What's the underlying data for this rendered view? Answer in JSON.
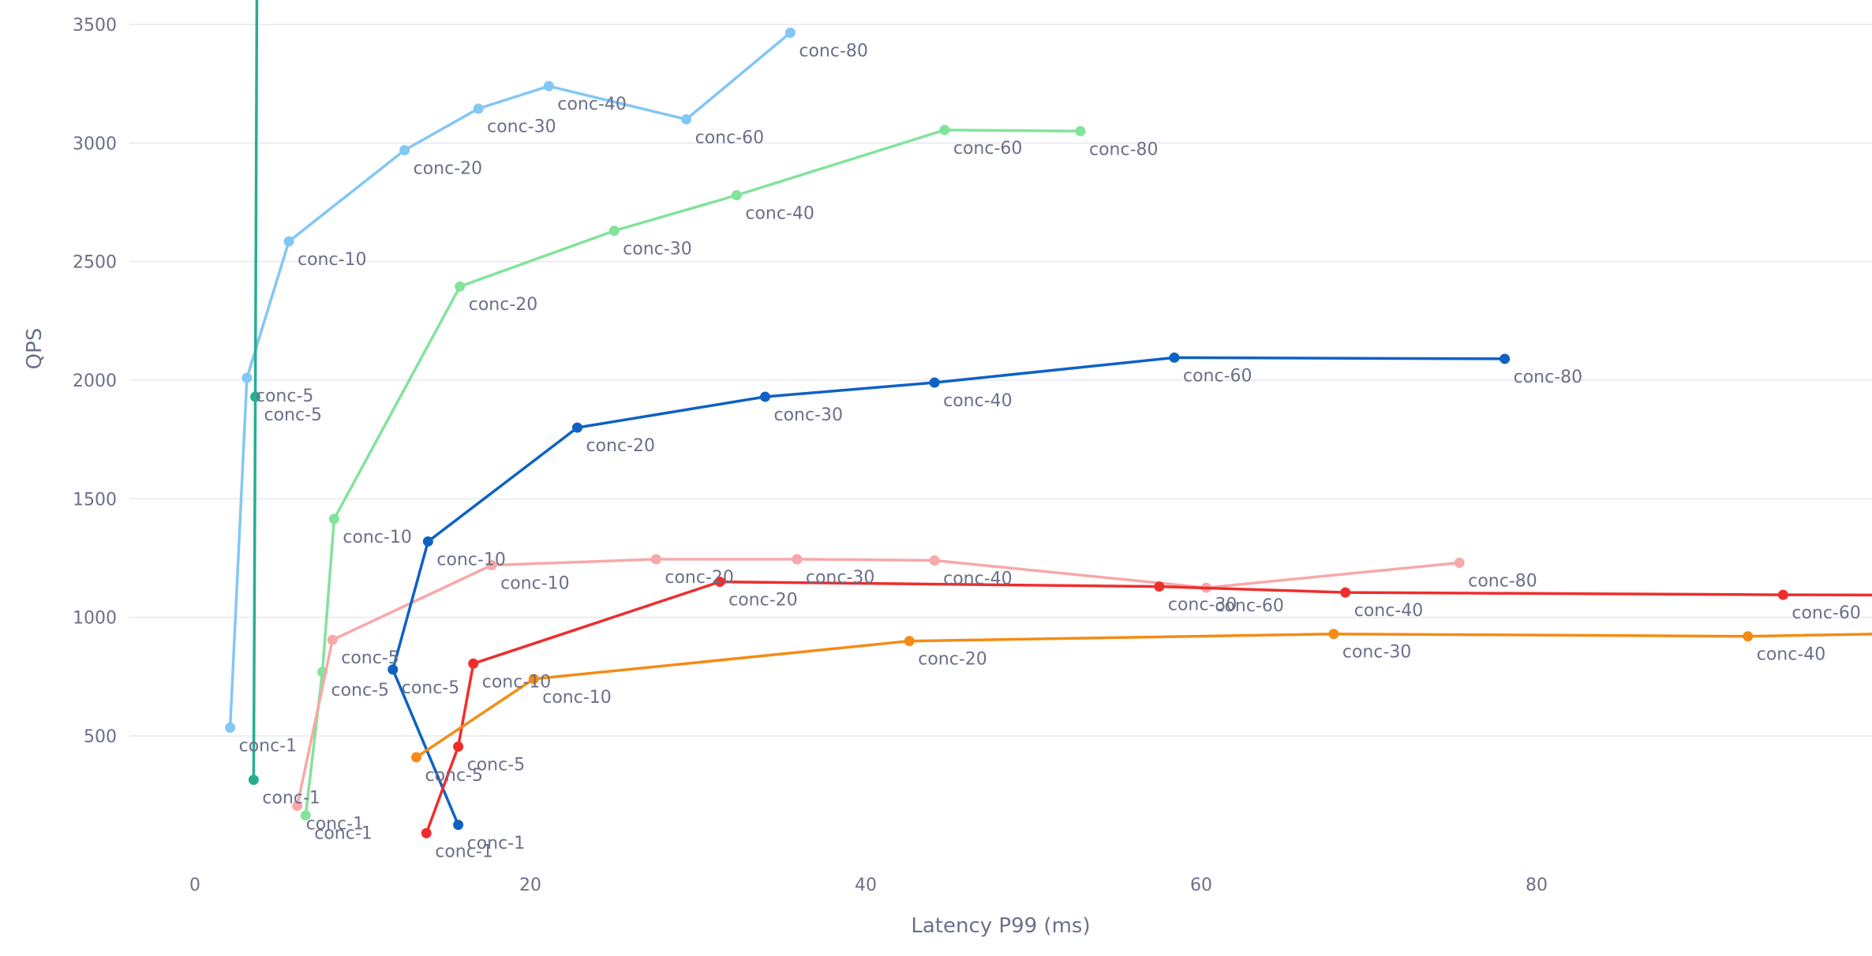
{
  "chart_data": {
    "type": "line",
    "xlabel": "Latency P99 (ms)",
    "ylabel": "QPS",
    "xlim": [
      -5.5,
      99
    ],
    "ylim": [
      50,
      3590
    ],
    "xticks": [
      0,
      20,
      40,
      60,
      80
    ],
    "yticks": [
      500,
      1000,
      1500,
      2000,
      2500,
      3000,
      3500
    ],
    "grid": "horizontal",
    "series": [
      {
        "color": "#82c7f5",
        "points": [
          {
            "x": 2.1,
            "y": 535,
            "label": "conc-1"
          },
          {
            "x": 3.1,
            "y": 2010,
            "label": "conc-5"
          },
          {
            "x": 5.6,
            "y": 2585,
            "label": "conc-10"
          },
          {
            "x": 12.5,
            "y": 2970,
            "label": "conc-20"
          },
          {
            "x": 16.9,
            "y": 3145,
            "label": "conc-30"
          },
          {
            "x": 21.1,
            "y": 3240,
            "label": "conc-40"
          },
          {
            "x": 29.3,
            "y": 3100,
            "label": "conc-60"
          },
          {
            "x": 35.5,
            "y": 3465,
            "label": "conc-80"
          }
        ]
      },
      {
        "color": "#27ae91",
        "points": [
          {
            "x": 3.5,
            "y": 315,
            "label": "conc-1"
          },
          {
            "x": 3.6,
            "y": 1930,
            "label": "conc-5"
          },
          {
            "x": 3.8,
            "y": 5600,
            "label": ""
          }
        ]
      },
      {
        "color": "#82e39b",
        "points": [
          {
            "x": 6.6,
            "y": 165,
            "label": "conc-1"
          },
          {
            "x": 7.6,
            "y": 770,
            "label": "conc-5"
          },
          {
            "x": 8.3,
            "y": 1415,
            "label": "conc-10"
          },
          {
            "x": 15.8,
            "y": 2395,
            "label": "conc-20"
          },
          {
            "x": 25.0,
            "y": 2630,
            "label": "conc-30"
          },
          {
            "x": 32.3,
            "y": 2780,
            "label": "conc-40"
          },
          {
            "x": 44.7,
            "y": 3055,
            "label": "conc-60"
          },
          {
            "x": 52.8,
            "y": 3050,
            "label": "conc-80"
          }
        ]
      },
      {
        "color": "#f7a8a8",
        "points": [
          {
            "x": 6.1,
            "y": 205,
            "label": "conc-1"
          },
          {
            "x": 8.2,
            "y": 905,
            "label": "conc-5"
          },
          {
            "x": 17.7,
            "y": 1220,
            "label": "conc-10"
          },
          {
            "x": 27.5,
            "y": 1245,
            "label": "conc-20"
          },
          {
            "x": 35.9,
            "y": 1245,
            "label": "conc-30"
          },
          {
            "x": 44.1,
            "y": 1240,
            "label": "conc-40"
          },
          {
            "x": 60.3,
            "y": 1125,
            "label": "conc-60"
          },
          {
            "x": 75.4,
            "y": 1230,
            "label": "conc-80"
          }
        ]
      },
      {
        "color": "#0d62c4",
        "points": [
          {
            "x": 15.7,
            "y": 125,
            "label": "conc-1"
          },
          {
            "x": 11.8,
            "y": 780,
            "label": "conc-5"
          },
          {
            "x": 13.9,
            "y": 1320,
            "label": "conc-10"
          },
          {
            "x": 22.8,
            "y": 1800,
            "label": "conc-20"
          },
          {
            "x": 34.0,
            "y": 1930,
            "label": "conc-30"
          },
          {
            "x": 44.1,
            "y": 1990,
            "label": "conc-40"
          },
          {
            "x": 58.4,
            "y": 2095,
            "label": "conc-60"
          },
          {
            "x": 78.1,
            "y": 2090,
            "label": "conc-80"
          }
        ]
      },
      {
        "color": "#ef2d2d",
        "points": [
          {
            "x": 13.8,
            "y": 90,
            "label": "conc-1"
          },
          {
            "x": 15.7,
            "y": 455,
            "label": "conc-5"
          },
          {
            "x": 16.6,
            "y": 805,
            "label": "conc-10"
          },
          {
            "x": 31.3,
            "y": 1150,
            "label": "conc-20"
          },
          {
            "x": 57.5,
            "y": 1130,
            "label": "conc-30"
          },
          {
            "x": 68.6,
            "y": 1105,
            "label": "conc-40"
          },
          {
            "x": 94.7,
            "y": 1095,
            "label": "conc-60"
          },
          {
            "x": 108,
            "y": 1093,
            "label": ""
          }
        ]
      },
      {
        "color": "#f58b14",
        "points": [
          {
            "x": 13.2,
            "y": 410,
            "label": "conc-5"
          },
          {
            "x": 20.2,
            "y": 740,
            "label": "conc-10"
          },
          {
            "x": 42.6,
            "y": 900,
            "label": "conc-20"
          },
          {
            "x": 67.9,
            "y": 930,
            "label": "conc-30"
          },
          {
            "x": 92.6,
            "y": 920,
            "label": "conc-40"
          },
          {
            "x": 108,
            "y": 940,
            "label": ""
          }
        ]
      }
    ]
  }
}
